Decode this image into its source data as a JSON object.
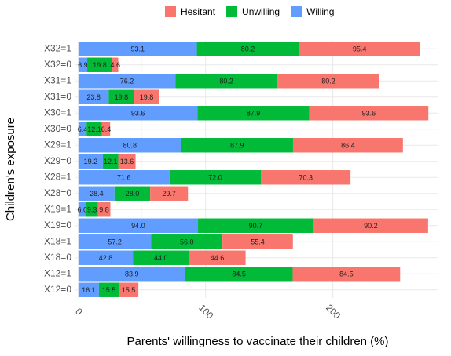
{
  "chart_data": {
    "type": "stacked-bar-horizontal",
    "x_label": "Parents' willingness to vaccinate their children (%)",
    "y_label": "Children's exposure",
    "categories": [
      "X32=1",
      "X32=0",
      "X31=1",
      "X31=0",
      "X30=1",
      "X30=0",
      "X29=1",
      "X29=0",
      "X28=1",
      "X28=0",
      "X19=1",
      "X19=0",
      "X18=1",
      "X18=0",
      "X12=1",
      "X12=0"
    ],
    "series": [
      {
        "name": "Hesitant",
        "color": "#F8766D",
        "values": [
          95.4,
          4.6,
          80.2,
          19.8,
          93.6,
          6.4,
          86.4,
          13.6,
          70.3,
          29.7,
          9.8,
          90.2,
          55.4,
          44.6,
          84.5,
          15.5
        ],
        "value_labels": [
          "95.4",
          "4.6",
          "80.2",
          "19.8",
          "93.6",
          "6.4",
          "86.4",
          "13.6",
          "70.3",
          "29.7",
          "9.8",
          "90.2",
          "55.4",
          "44.6",
          "84.5",
          "15.5"
        ]
      },
      {
        "name": "Unwilling",
        "color": "#00BA38",
        "values": [
          80.2,
          19.8,
          80.2,
          19.8,
          87.9,
          12.1,
          87.9,
          12.1,
          72.0,
          28.0,
          9.3,
          90.7,
          56.0,
          44.0,
          84.5,
          15.5
        ],
        "value_labels": [
          "80.2",
          "19.8",
          "80.2",
          "19.8",
          "87.9",
          "12.1",
          "87.9",
          "12.1",
          "72.0",
          "28.0",
          "9.3",
          "90.7",
          "56.0",
          "44.0",
          "84.5",
          "15.5"
        ]
      },
      {
        "name": "Willing",
        "color": "#619CFF",
        "values": [
          93.1,
          6.9,
          76.2,
          23.8,
          93.6,
          6.4,
          80.8,
          19.2,
          71.6,
          28.4,
          6.0,
          94.0,
          57.2,
          42.8,
          83.9,
          16.1
        ],
        "value_labels": [
          "93.1",
          "6.9",
          "76.2",
          "23.8",
          "93.6",
          "6.4",
          "80.8",
          "19.2",
          "71.6",
          "28.4",
          "6.0",
          "94.0",
          "57.2",
          "42.8",
          "83.9",
          "16.1"
        ]
      }
    ],
    "xlim": [
      -3,
      283
    ],
    "xticks": [
      0,
      100,
      200
    ],
    "grid": true,
    "legend": "top"
  }
}
